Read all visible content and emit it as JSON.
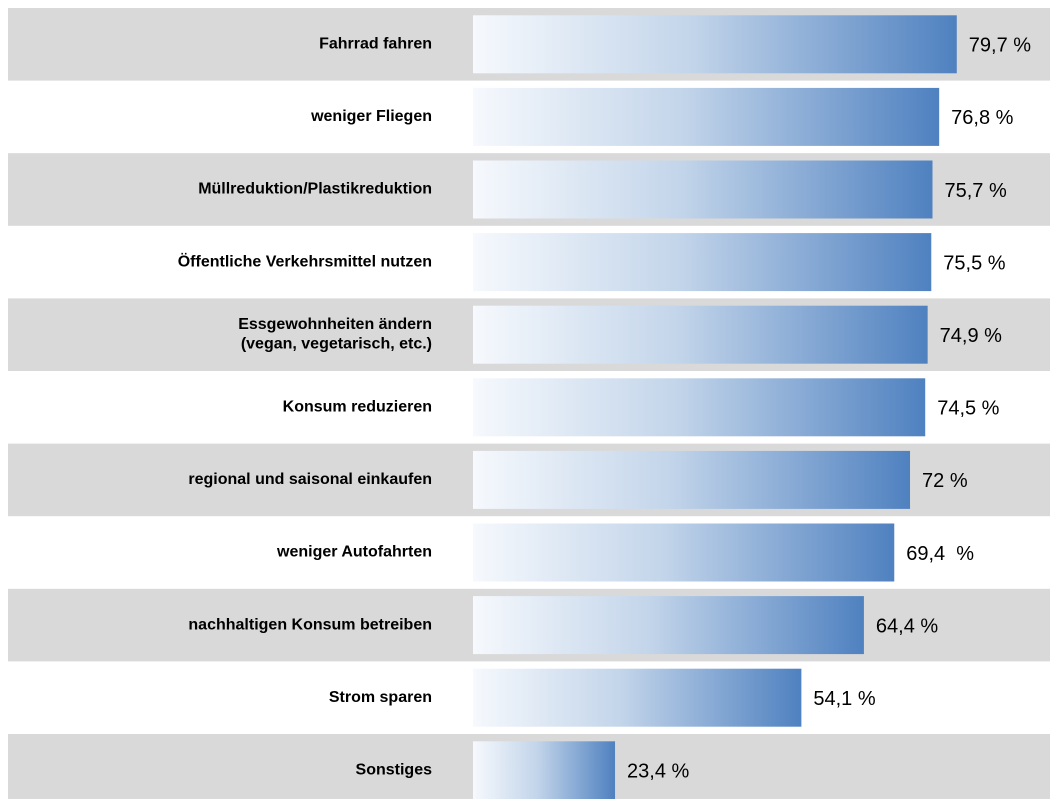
{
  "chart_data": {
    "type": "barh",
    "categories": [
      "Fahrrad fahren",
      "weniger Fliegen",
      "Müllreduktion/Plastikreduktion",
      "Öffentliche Verkehrsmittel nutzen",
      "Essgewohnheiten ändern\n(vegan, vegetarisch, etc.)",
      "Konsum reduzieren",
      "regional und saisonal einkaufen",
      "weniger Autofahrten",
      "nachhaltigen Konsum betreiben",
      "Strom sparen",
      "Sonstiges"
    ],
    "values": [
      79.7,
      76.8,
      75.7,
      75.5,
      74.9,
      74.5,
      72,
      69.4,
      64.4,
      54.1,
      23.4
    ],
    "value_labels": [
      "79,7 %",
      "76,8 %",
      "75,7 %",
      "75,5 %",
      "74,9 %",
      "74,5 %",
      "72 %",
      "69,4  %",
      "64,4 %",
      "54,1 %",
      "23,4 %"
    ],
    "color": "#4f81c0"
  }
}
